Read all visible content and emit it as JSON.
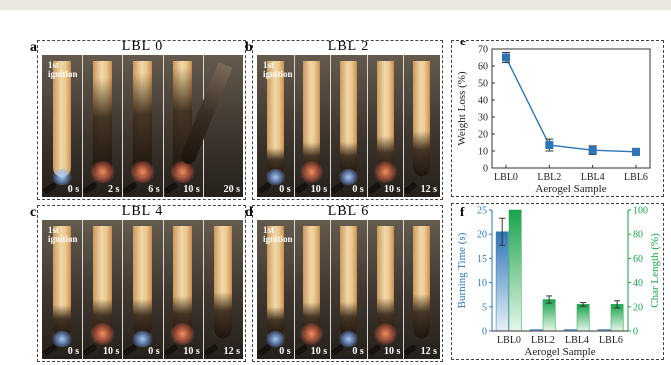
{
  "panels": [
    {
      "letter": "a",
      "title": "LBL 0",
      "ignition_label": "1st\nignition",
      "time_labels": [
        "0 s",
        "2 s",
        "6 s",
        "10 s",
        "20 s"
      ]
    },
    {
      "letter": "b",
      "title": "LBL 2",
      "ignition_label": "1st\nignition",
      "time_labels": [
        "0 s",
        "10 s",
        "0 s",
        "10 s",
        "12 s"
      ]
    },
    {
      "letter": "c",
      "title": "LBL 4",
      "ignition_label": "1st\nignition",
      "time_labels": [
        "0 s",
        "10 s",
        "0 s",
        "10 s",
        "12 s"
      ]
    },
    {
      "letter": "d",
      "title": "LBL 6",
      "ignition_label": "1st\nignition",
      "time_labels": [
        "0 s",
        "10 s",
        "0 s",
        "10 s",
        "12 s"
      ]
    }
  ],
  "colors": {
    "weight_loss": "#2e75b6",
    "burning_time": "#2e75b6",
    "char_length": "#1aa34a"
  },
  "chart_data": [
    {
      "panel": "e",
      "type": "line",
      "categories": [
        "LBL0",
        "LBL2",
        "LBL4",
        "LBL6"
      ],
      "series": [
        {
          "values": [
            65,
            13.5,
            10.5,
            9.5
          ],
          "errors": [
            3,
            3.5,
            2.5,
            2
          ]
        }
      ],
      "xlabel": "Aerogel Sample",
      "ylabel": "Weight Loss (%)",
      "ylim": [
        0,
        70
      ],
      "yticks": [
        0,
        10,
        20,
        30,
        40,
        50,
        60,
        70
      ],
      "legend": "none",
      "grid": false
    },
    {
      "panel": "f",
      "type": "bar",
      "categories": [
        "LBL0",
        "LBL2",
        "LBL4",
        "LBL6"
      ],
      "series": [
        {
          "values": [
            20.5,
            0.3,
            0.3,
            0.3
          ],
          "errors": [
            2.8,
            0.1,
            0.1,
            0.1
          ],
          "axis": "left"
        },
        {
          "values": [
            100,
            26,
            22,
            22
          ],
          "errors": [
            0,
            3,
            1.5,
            3
          ],
          "axis": "right"
        }
      ],
      "xlabel": "Aerogel Sample",
      "ylabel": "Burning Time (s)",
      "y2label": "Char Length (%)",
      "ylim": [
        0,
        25
      ],
      "yticks": [
        0,
        5,
        10,
        15,
        20,
        25
      ],
      "y2lim": [
        0,
        100
      ],
      "y2ticks": [
        0,
        20,
        40,
        60,
        80,
        100
      ],
      "legend": "none",
      "grid": false
    }
  ]
}
